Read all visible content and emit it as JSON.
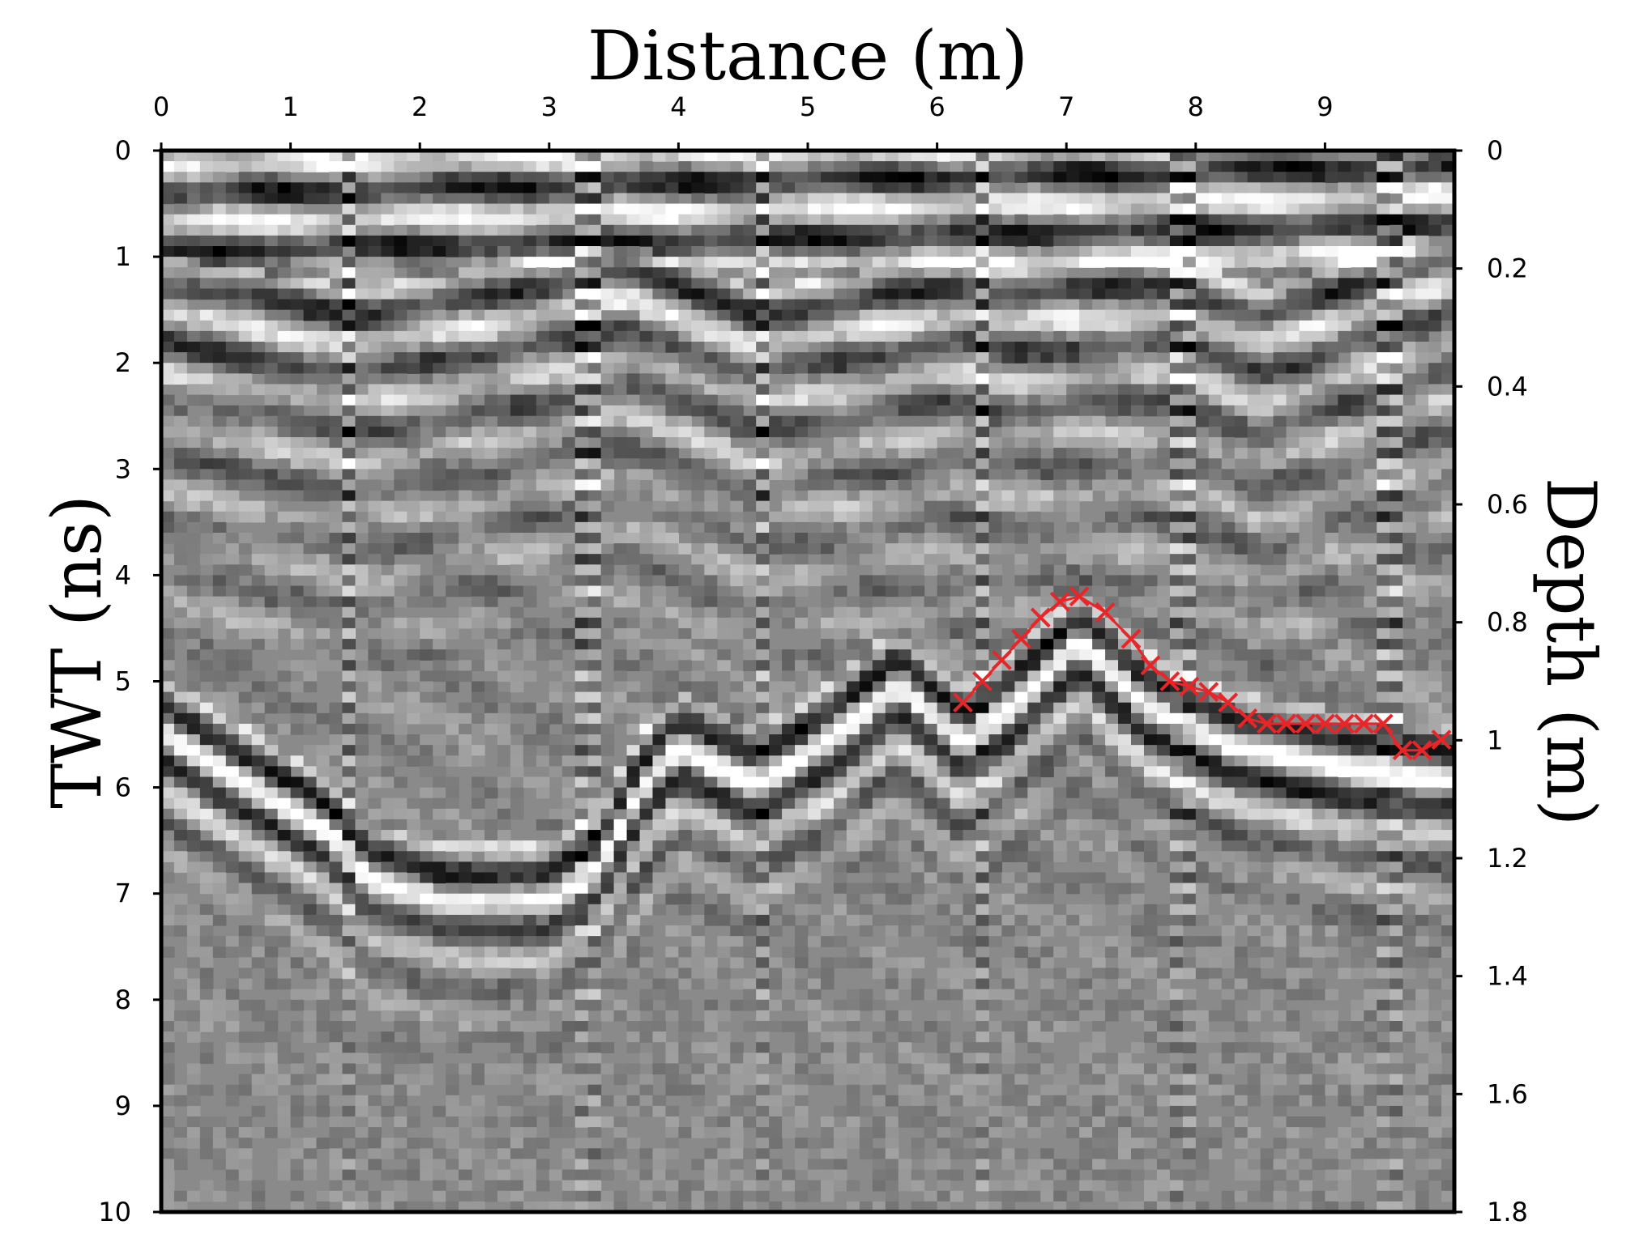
{
  "chart_data": {
    "type": "heatmap",
    "title": "",
    "xlabel": "Distance (m)",
    "ylabel_left": "TWT (ns)",
    "ylabel_right": "Depth (m)",
    "xlim": [
      0,
      10
    ],
    "ylim_left": [
      0,
      10
    ],
    "ylim_right": [
      0,
      1.8
    ],
    "x_ticks": [
      "0",
      "1",
      "2",
      "3",
      "4",
      "5",
      "6",
      "7",
      "8",
      "9"
    ],
    "y_left_ticks": [
      "0",
      "1",
      "2",
      "3",
      "4",
      "5",
      "6",
      "7",
      "8",
      "9",
      "10"
    ],
    "y_right_ticks": [
      "0",
      "0.2",
      "0.4",
      "0.6",
      "0.8",
      "1",
      "1.2",
      "1.4",
      "1.6",
      "1.8"
    ],
    "colormap": "grayscale",
    "picked_reflector": {
      "marker": "x",
      "color": "#e8262a",
      "x": [
        6.2,
        6.35,
        6.5,
        6.65,
        6.8,
        6.95,
        7.1,
        7.3,
        7.5,
        7.65,
        7.8,
        7.95,
        8.1,
        8.25,
        8.4,
        8.55,
        8.7,
        8.85,
        9.0,
        9.15,
        9.3,
        9.45,
        9.6,
        9.75,
        9.9
      ],
      "twt": [
        5.2,
        5.0,
        4.8,
        4.6,
        4.4,
        4.25,
        4.2,
        4.35,
        4.6,
        4.85,
        5.0,
        5.05,
        5.1,
        5.2,
        5.35,
        5.4,
        5.4,
        5.4,
        5.4,
        5.4,
        5.4,
        5.4,
        5.65,
        5.65,
        5.55
      ]
    }
  }
}
